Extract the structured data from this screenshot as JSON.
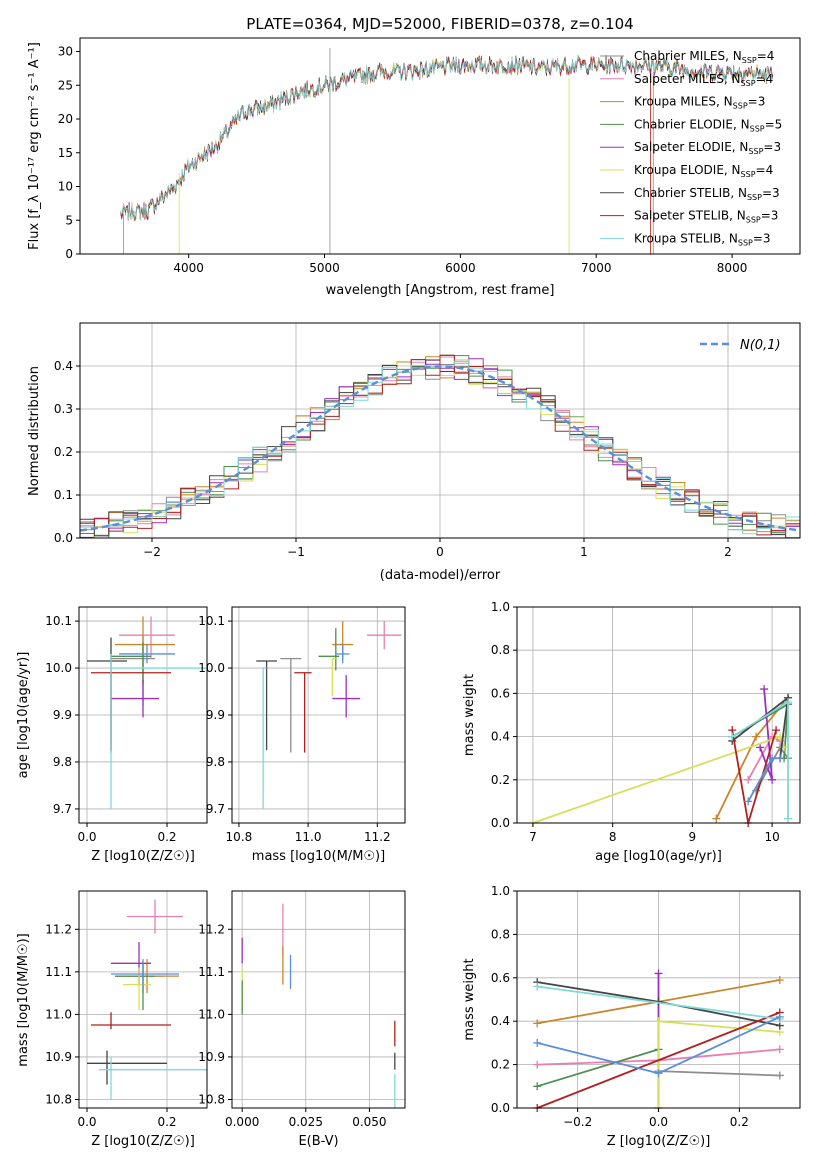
{
  "figure_title": "PLATE=0364, MJD=52000, FIBERID=0378, z=0.104",
  "models": [
    {
      "name": "Chabrier MILES",
      "nssp": "4",
      "color": "#8c8c8c"
    },
    {
      "name": "Salpeter MILES",
      "nssp": "4",
      "color": "#e87fb0"
    },
    {
      "name": "Kroupa MILES",
      "nssp": "3",
      "color": "#c8862e"
    },
    {
      "name": "Chabrier ELODIE",
      "nssp": "5",
      "color": "#4f8f4f"
    },
    {
      "name": "Salpeter ELODIE",
      "nssp": "3",
      "color": "#9b2fbf"
    },
    {
      "name": "Kroupa ELODIE",
      "nssp": "4",
      "color": "#d6e05a"
    },
    {
      "name": "Chabrier STELIB",
      "nssp": "3",
      "color": "#454545"
    },
    {
      "name": "Salpeter STELIB",
      "nssp": "3",
      "color": "#b22020"
    },
    {
      "name": "Kroupa STELIB",
      "nssp": "3",
      "color": "#7fd9d9"
    }
  ],
  "chart_data": [
    {
      "id": "spectrum",
      "type": "line",
      "xlabel": "wavelength [Angstrom, rest frame]",
      "ylabel": "Flux [f_λ 10⁻¹⁷ erg cm⁻² s⁻¹ A⁻¹]",
      "xlim": [
        3200,
        8500
      ],
      "ylim": [
        0,
        32
      ],
      "xticks": [
        4000,
        5000,
        6000,
        7000,
        8000
      ],
      "yticks": [
        0,
        5,
        10,
        15,
        20,
        25,
        30
      ],
      "x_range": [
        3500,
        8300
      ],
      "continuum": [
        [
          3500,
          6
        ],
        [
          3700,
          6.5
        ],
        [
          3900,
          10
        ],
        [
          4000,
          13
        ],
        [
          4200,
          16
        ],
        [
          4400,
          21
        ],
        [
          4600,
          22
        ],
        [
          4800,
          24
        ],
        [
          5000,
          25
        ],
        [
          5200,
          26
        ],
        [
          5400,
          27
        ],
        [
          5600,
          27
        ],
        [
          5800,
          27.5
        ],
        [
          6000,
          28
        ],
        [
          6200,
          28
        ],
        [
          6400,
          28
        ],
        [
          6600,
          27.5
        ],
        [
          6800,
          28
        ],
        [
          7000,
          28
        ],
        [
          7200,
          28
        ],
        [
          7400,
          28
        ],
        [
          7600,
          27.5
        ],
        [
          7800,
          27
        ],
        [
          8000,
          27
        ],
        [
          8300,
          26.5
        ]
      ],
      "grid": false,
      "legend": "top-right"
    },
    {
      "id": "residuals",
      "type": "histogram",
      "xlabel": "(data-model)/error",
      "ylabel": "Normed distribution",
      "xlim": [
        -2.5,
        2.5
      ],
      "ylim": [
        0,
        0.5
      ],
      "xticks": [
        -2,
        -1,
        0,
        1,
        2
      ],
      "yticks": [
        0.0,
        0.1,
        0.2,
        0.3,
        0.4
      ],
      "bin_width": 0.1,
      "reference_curve": "N(0,1)",
      "reference_color": "#5b8fd9",
      "grid": true,
      "legend": "top-right"
    },
    {
      "id": "age_vs_Z",
      "type": "errorbar",
      "xlabel": "Z [log10(Z/Z☉)]",
      "ylabel": "age [log10(age/yr)]",
      "xlim": [
        -0.02,
        0.3
      ],
      "ylim": [
        9.67,
        10.13
      ],
      "xticks": [
        0.0,
        0.2
      ],
      "yticks": [
        9.7,
        9.8,
        9.9,
        10.0,
        10.1
      ],
      "points": [
        {
          "m": 0,
          "x": 0.14,
          "y": 10.02,
          "xe": [
            0.08,
            0.03
          ],
          "ye": [
            0.1,
            0.05
          ]
        },
        {
          "m": 1,
          "x": 0.16,
          "y": 10.07,
          "xe": [
            0.08,
            0.06
          ],
          "ye": [
            0.05,
            0.04
          ]
        },
        {
          "m": 2,
          "x": 0.14,
          "y": 10.05,
          "xe": [
            0.07,
            0.08
          ],
          "ye": [
            0.08,
            0.06
          ]
        },
        {
          "m": 3,
          "x": 0.14,
          "y": 10.025,
          "xe": [
            0.08,
            0.02
          ],
          "ye": [
            0.06,
            0.03
          ]
        },
        {
          "m": 4,
          "x": 0.14,
          "y": 9.935,
          "xe": [
            0.08,
            0.04
          ],
          "ye": [
            0.04,
            0.04
          ]
        },
        {
          "m": 5,
          "x": 0.06,
          "y": 10.0,
          "xe": [
            0.0,
            0.0
          ],
          "ye": [
            0.0,
            0.0
          ]
        },
        {
          "m": 6,
          "x": 0.06,
          "y": 10.015,
          "xe": [
            0.06,
            0.04
          ],
          "ye": [
            0.19,
            0.05
          ]
        },
        {
          "m": 7,
          "x": 0.06,
          "y": 9.99,
          "xe": [
            0.05,
            0.15
          ],
          "ye": [
            0.17,
            0.0
          ]
        },
        {
          "m": 8,
          "x": 0.06,
          "y": 10.0,
          "xe": [
            0.0,
            0.24
          ],
          "ye": [
            0.3,
            0.03
          ]
        },
        {
          "m": 9,
          "x": 0.15,
          "y": 10.03,
          "xe": [
            0.07,
            0.07
          ],
          "ye": [
            0.02,
            0.02
          ]
        }
      ]
    },
    {
      "id": "age_vs_mass",
      "type": "errorbar",
      "xlabel": "mass [log10(M/M☉)]",
      "ylabel": "",
      "xlim": [
        10.78,
        11.28
      ],
      "ylim": [
        9.67,
        10.13
      ],
      "xticks": [
        10.8,
        11.0,
        11.2
      ],
      "yticks": [
        9.7,
        9.8,
        9.9,
        10.0,
        10.1
      ],
      "points": [
        {
          "m": 0,
          "x": 10.95,
          "y": 10.02,
          "xe": [
            0.03,
            0.03
          ],
          "ye": [
            0.2,
            0.0
          ]
        },
        {
          "m": 1,
          "x": 11.22,
          "y": 10.07,
          "xe": [
            0.05,
            0.05
          ],
          "ye": [
            0.03,
            0.03
          ]
        },
        {
          "m": 2,
          "x": 11.1,
          "y": 10.05,
          "xe": [
            0.03,
            0.03
          ],
          "ye": [
            0.03,
            0.05
          ]
        },
        {
          "m": 3,
          "x": 11.08,
          "y": 10.025,
          "xe": [
            0.05,
            0.01
          ],
          "ye": [
            0.03,
            0.06
          ]
        },
        {
          "m": 4,
          "x": 11.11,
          "y": 9.935,
          "xe": [
            0.04,
            0.04
          ],
          "ye": [
            0.04,
            0.05
          ]
        },
        {
          "m": 5,
          "x": 11.07,
          "y": 10.02,
          "xe": [
            0.0,
            0.01
          ],
          "ye": [
            0.08,
            0.0
          ]
        },
        {
          "m": 6,
          "x": 10.88,
          "y": 10.015,
          "xe": [
            0.03,
            0.03
          ],
          "ye": [
            0.19,
            0.0
          ]
        },
        {
          "m": 7,
          "x": 10.99,
          "y": 9.99,
          "xe": [
            0.03,
            0.02
          ],
          "ye": [
            0.17,
            0.0
          ]
        },
        {
          "m": 8,
          "x": 10.87,
          "y": 10.0,
          "xe": [
            0.0,
            0.01
          ],
          "ye": [
            0.3,
            0.0
          ]
        },
        {
          "m": 9,
          "x": 11.1,
          "y": 10.03,
          "xe": [
            0.02,
            0.02
          ],
          "ye": [
            0.02,
            0.02
          ]
        }
      ]
    },
    {
      "id": "weight_vs_age",
      "type": "line",
      "xlabel": "age [log10(age/yr)]",
      "ylabel": "mass weight",
      "xlim": [
        6.8,
        10.35
      ],
      "ylim": [
        0,
        1.0
      ],
      "xticks": [
        7,
        8,
        9,
        10
      ],
      "yticks": [
        0.0,
        0.2,
        0.4,
        0.6,
        0.8,
        1.0
      ],
      "grid": true,
      "series": [
        {
          "m": 0,
          "pts": [
            [
              9.8,
              0.15
            ],
            [
              10.1,
              0.35
            ],
            [
              10.2,
              0.3
            ]
          ]
        },
        {
          "m": 1,
          "pts": [
            [
              9.7,
              0.2
            ],
            [
              10.0,
              0.4
            ],
            [
              10.1,
              0.38
            ]
          ]
        },
        {
          "m": 2,
          "pts": [
            [
              9.3,
              0.02
            ],
            [
              9.8,
              0.4
            ],
            [
              10.2,
              0.58
            ]
          ]
        },
        {
          "m": 3,
          "pts": [
            [
              9.5,
              0.4
            ],
            [
              10.2,
              0.55
            ],
            [
              10.15,
              0.3
            ]
          ]
        },
        {
          "m": 4,
          "pts": [
            [
              9.9,
              0.62
            ],
            [
              10.0,
              0.2
            ],
            [
              9.85,
              0.35
            ]
          ]
        },
        {
          "m": 5,
          "pts": [
            [
              7.0,
              0.0
            ],
            [
              10.1,
              0.4
            ],
            [
              10.15,
              0.35
            ]
          ]
        },
        {
          "m": 6,
          "pts": [
            [
              9.5,
              0.38
            ],
            [
              10.2,
              0.58
            ],
            [
              10.1,
              0.3
            ]
          ]
        },
        {
          "m": 7,
          "pts": [
            [
              9.5,
              0.43
            ],
            [
              9.7,
              0.0
            ],
            [
              10.05,
              0.43
            ]
          ]
        },
        {
          "m": 8,
          "pts": [
            [
              9.5,
              0.4
            ],
            [
              10.2,
              0.56
            ],
            [
              10.2,
              0.02
            ]
          ]
        },
        {
          "m": 9,
          "pts": [
            [
              9.7,
              0.1
            ],
            [
              10.0,
              0.3
            ],
            [
              10.1,
              0.3
            ]
          ]
        }
      ]
    },
    {
      "id": "mass_vs_Z",
      "type": "errorbar",
      "xlabel": "Z [log10(Z/Z☉)]",
      "ylabel": "mass [log10(M/M☉)]",
      "xlim": [
        -0.02,
        0.3
      ],
      "ylim": [
        10.78,
        11.29
      ],
      "xticks": [
        0.0,
        0.2
      ],
      "yticks": [
        10.8,
        10.9,
        11.0,
        11.1,
        11.2
      ],
      "points": [
        {
          "m": 0,
          "x": 0.14,
          "y": 11.09,
          "xe": [
            0.07,
            0.05
          ],
          "ye": [
            0.04,
            0.04
          ]
        },
        {
          "m": 1,
          "x": 0.17,
          "y": 11.23,
          "xe": [
            0.07,
            0.07
          ],
          "ye": [
            0.04,
            0.04
          ]
        },
        {
          "m": 2,
          "x": 0.15,
          "y": 11.09,
          "xe": [
            0.08,
            0.08
          ],
          "ye": [
            0.04,
            0.04
          ]
        },
        {
          "m": 3,
          "x": 0.14,
          "y": 11.09,
          "xe": [
            0.07,
            0.03
          ],
          "ye": [
            0.08,
            0.03
          ]
        },
        {
          "m": 4,
          "x": 0.13,
          "y": 11.12,
          "xe": [
            0.07,
            0.03
          ],
          "ye": [
            0.05,
            0.05
          ]
        },
        {
          "m": 5,
          "x": 0.13,
          "y": 11.07,
          "xe": [
            0.04,
            0.03
          ],
          "ye": [
            0.06,
            0.04
          ]
        },
        {
          "m": 6,
          "x": 0.05,
          "y": 10.885,
          "xe": [
            0.05,
            0.15
          ],
          "ye": [
            0.05,
            0.03
          ]
        },
        {
          "m": 7,
          "x": 0.06,
          "y": 10.975,
          "xe": [
            0.05,
            0.15
          ],
          "ye": [
            0.01,
            0.03
          ]
        },
        {
          "m": 8,
          "x": 0.06,
          "y": 10.87,
          "xe": [
            0.03,
            0.24
          ],
          "ye": [
            0.07,
            0.03
          ]
        },
        {
          "m": 9,
          "x": 0.14,
          "y": 11.095,
          "xe": [
            0.08,
            0.09
          ],
          "ye": [
            0.03,
            0.03
          ]
        }
      ]
    },
    {
      "id": "mass_vs_ebv",
      "type": "errorbar",
      "xlabel": "E(B-V)",
      "ylabel": "",
      "xlim": [
        -0.004,
        0.064
      ],
      "ylim": [
        10.78,
        11.29
      ],
      "xticks": [
        0.0,
        0.025,
        0.05
      ],
      "yticks": [
        10.8,
        10.9,
        11.0,
        11.1,
        11.2
      ],
      "points": [
        {
          "m": 1,
          "x": 0.016,
          "y": 11.2,
          "xe": [
            0,
            0
          ],
          "ye": [
            0.06,
            0.06
          ]
        },
        {
          "m": 2,
          "x": 0.016,
          "y": 11.11,
          "xe": [
            0,
            0
          ],
          "ye": [
            0.04,
            0.05
          ]
        },
        {
          "m": 9,
          "x": 0.019,
          "y": 11.1,
          "xe": [
            0,
            0
          ],
          "ye": [
            0.04,
            0.04
          ]
        },
        {
          "m": 4,
          "x": 0.0,
          "y": 11.15,
          "xe": [
            0,
            0
          ],
          "ye": [
            0.03,
            0.03
          ]
        },
        {
          "m": 5,
          "x": 0.0,
          "y": 11.07,
          "xe": [
            0,
            0
          ],
          "ye": [
            0.06,
            0.04
          ]
        },
        {
          "m": 3,
          "x": 0.0,
          "y": 11.05,
          "xe": [
            0,
            0
          ],
          "ye": [
            0.05,
            0.03
          ]
        },
        {
          "m": 7,
          "x": 0.06,
          "y": 10.955,
          "xe": [
            0,
            0
          ],
          "ye": [
            0.03,
            0.03
          ]
        },
        {
          "m": 6,
          "x": 0.06,
          "y": 10.89,
          "xe": [
            0,
            0
          ],
          "ye": [
            0.02,
            0.02
          ]
        },
        {
          "m": 8,
          "x": 0.06,
          "y": 10.83,
          "xe": [
            0,
            0
          ],
          "ye": [
            0.05,
            0.03
          ]
        }
      ]
    },
    {
      "id": "weight_vs_Z",
      "type": "line",
      "xlabel": "Z [log10(Z/Z☉)]",
      "ylabel": "mass weight",
      "xlim": [
        -0.35,
        0.35
      ],
      "ylim": [
        0,
        1.0
      ],
      "xticks": [
        -0.2,
        0.0,
        0.2
      ],
      "yticks": [
        0.0,
        0.2,
        0.4,
        0.6,
        0.8,
        1.0
      ],
      "grid": true,
      "series": [
        {
          "m": 0,
          "pts": [
            [
              0.0,
              0.17
            ],
            [
              0.3,
              0.15
            ]
          ]
        },
        {
          "m": 1,
          "pts": [
            [
              -0.3,
              0.2
            ],
            [
              0.0,
              0.22
            ],
            [
              0.3,
              0.27
            ]
          ]
        },
        {
          "m": 2,
          "pts": [
            [
              -0.3,
              0.39
            ],
            [
              0.0,
              0.49
            ],
            [
              0.3,
              0.59
            ]
          ]
        },
        {
          "m": 3,
          "pts": [
            [
              -0.3,
              0.1
            ],
            [
              0.0,
              0.27
            ]
          ]
        },
        {
          "m": 4,
          "pts": [
            [
              0.0,
              0.62
            ],
            [
              0.0,
              0.0
            ]
          ]
        },
        {
          "m": 5,
          "pts": [
            [
              0.0,
              0.0
            ],
            [
              0.0,
              0.4
            ],
            [
              0.3,
              0.35
            ]
          ]
        },
        {
          "m": 6,
          "pts": [
            [
              -0.3,
              0.58
            ],
            [
              0.0,
              0.49
            ],
            [
              0.3,
              0.38
            ]
          ]
        },
        {
          "m": 7,
          "pts": [
            [
              -0.3,
              0.0
            ],
            [
              0.3,
              0.44
            ]
          ]
        },
        {
          "m": 8,
          "pts": [
            [
              -0.3,
              0.56
            ],
            [
              0.3,
              0.41
            ]
          ]
        },
        {
          "m": 9,
          "pts": [
            [
              -0.3,
              0.3
            ],
            [
              0.0,
              0.16
            ],
            [
              0.3,
              0.42
            ]
          ]
        }
      ]
    }
  ]
}
